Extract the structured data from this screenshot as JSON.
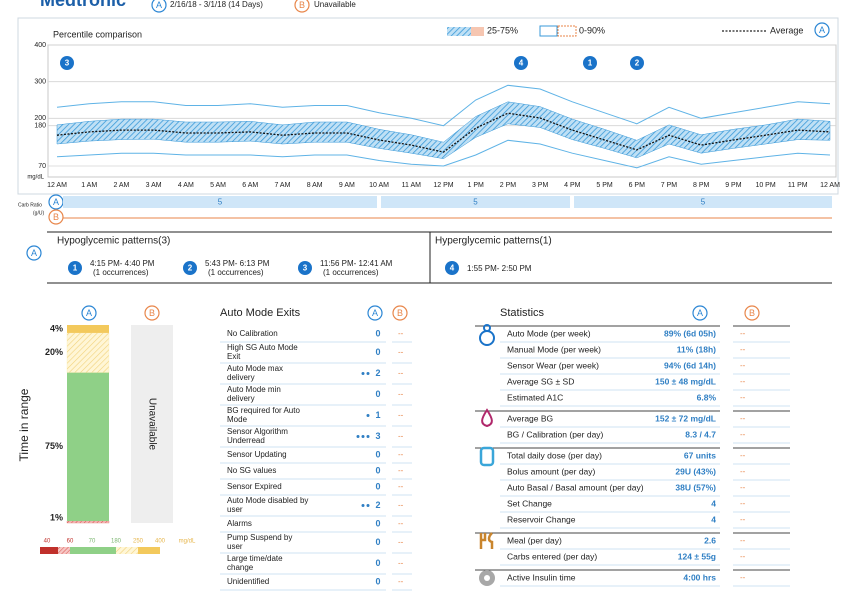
{
  "header": {
    "logo": "Medtronic",
    "period_a_badge": "A",
    "period_a": "2/16/18 - 3/1/18 (14 Days)",
    "period_b_badge": "B",
    "period_b": "Unavailable"
  },
  "percentile_chart": {
    "title": "Percentile comparison",
    "legend_band": "25-75%",
    "legend_range": "0-90%",
    "legend_average": "Average",
    "legend_badge": "A",
    "y_unit": "mg/dL",
    "ylim": [
      40,
      400
    ],
    "yticks": [
      400,
      300,
      200,
      180,
      70
    ],
    "x_labels": [
      "12 AM",
      "1 AM",
      "2 AM",
      "3 AM",
      "4 AM",
      "5 AM",
      "6 AM",
      "7 AM",
      "8 AM",
      "9 AM",
      "10 AM",
      "11 AM",
      "12 PM",
      "1 PM",
      "2 PM",
      "3 PM",
      "4 PM",
      "5 PM",
      "6 PM",
      "7 PM",
      "8 PM",
      "9 PM",
      "10 PM",
      "11 PM",
      "12 AM"
    ],
    "average": [
      154,
      163,
      168,
      168,
      160,
      160,
      163,
      154,
      160,
      160,
      141,
      127,
      108,
      173,
      214,
      201,
      168,
      141,
      114,
      154,
      127,
      141,
      154,
      168,
      163
    ],
    "p25": [
      130,
      138,
      142,
      143,
      135,
      135,
      138,
      130,
      135,
      135,
      118,
      105,
      90,
      148,
      185,
      175,
      142,
      118,
      92,
      130,
      105,
      118,
      130,
      142,
      140
    ],
    "p75": [
      182,
      192,
      198,
      198,
      190,
      190,
      192,
      182,
      190,
      190,
      170,
      155,
      135,
      205,
      245,
      232,
      198,
      170,
      140,
      182,
      155,
      170,
      182,
      198,
      192
    ],
    "p10": [
      95,
      100,
      105,
      105,
      100,
      100,
      100,
      95,
      100,
      100,
      85,
      75,
      70,
      100,
      140,
      130,
      105,
      85,
      65,
      95,
      75,
      85,
      95,
      105,
      100
    ],
    "p90": [
      230,
      240,
      245,
      245,
      235,
      235,
      240,
      230,
      235,
      235,
      215,
      200,
      180,
      250,
      290,
      280,
      245,
      215,
      185,
      230,
      200,
      215,
      230,
      245,
      240
    ],
    "markers": [
      "3",
      "4",
      "1",
      "2"
    ]
  },
  "carb_ratio": {
    "label_lines": [
      "Carb Ratio",
      "(g/U)"
    ],
    "badge_a": "A",
    "badge_b": "B",
    "segments": [
      5,
      5,
      5
    ]
  },
  "patterns": {
    "badge": "A",
    "hypo_title": "Hypoglycemic patterns(3)",
    "hyper_title": "Hyperglycemic patterns(1)",
    "items": [
      {
        "num": "1",
        "time": "4:15 PM- 4:40 PM",
        "occ": "(1 occurrences)"
      },
      {
        "num": "2",
        "time": "5:43 PM- 6:13 PM",
        "occ": "(1 occurrences)"
      },
      {
        "num": "3",
        "time": "11:56 PM- 12:41 AM",
        "occ": "(1 occurrences)"
      },
      {
        "num": "4",
        "time": "1:55 PM- 2:50 PM"
      }
    ]
  },
  "time_in_range": {
    "axis_label": "Time in range",
    "badge_a": "A",
    "badge_b": "B",
    "unavailable": "Unavailable",
    "segments": [
      {
        "label": "4%",
        "value": 4,
        "color": "#f3c95c"
      },
      {
        "label": "20%",
        "value": 20,
        "color": "#fbeaa9"
      },
      {
        "label": "75%",
        "value": 75,
        "color": "#8fd087"
      },
      {
        "label": "1%",
        "value": 1,
        "color": "#d9534f"
      }
    ],
    "legend_ticks": [
      40,
      60,
      70,
      180,
      250,
      400
    ],
    "legend_unit": "mg/dL"
  },
  "auto_mode_exits": {
    "title": "Auto Mode Exits",
    "badge_a": "A",
    "badge_b": "B",
    "rows": [
      {
        "label": [
          "No Calibration"
        ],
        "value": 0,
        "b": "--"
      },
      {
        "label": [
          "High SG Auto Mode",
          "Exit"
        ],
        "value": 0,
        "b": "--"
      },
      {
        "label": [
          "Auto Mode max",
          "delivery"
        ],
        "value": 2,
        "b": "--"
      },
      {
        "label": [
          "Auto Mode min",
          "delivery"
        ],
        "value": 0,
        "b": "--"
      },
      {
        "label": [
          "BG required for Auto",
          "Mode"
        ],
        "value": 1,
        "b": "--"
      },
      {
        "label": [
          "Sensor Algorithm",
          "Underread"
        ],
        "value": 3,
        "b": "--"
      },
      {
        "label": [
          "Sensor Updating"
        ],
        "value": 0,
        "b": "--"
      },
      {
        "label": [
          "No SG values"
        ],
        "value": 0,
        "b": "--"
      },
      {
        "label": [
          "Sensor Expired"
        ],
        "value": 0,
        "b": "--"
      },
      {
        "label": [
          "Auto Mode disabled by",
          "user"
        ],
        "value": 2,
        "b": "--"
      },
      {
        "label": [
          "Alarms"
        ],
        "value": 0,
        "b": "--"
      },
      {
        "label": [
          "Pump Suspend by",
          "user"
        ],
        "value": 0,
        "b": "--"
      },
      {
        "label": [
          "Large time/date",
          "change"
        ],
        "value": 0,
        "b": "--"
      },
      {
        "label": [
          "Unidentified"
        ],
        "value": 0,
        "b": "--"
      }
    ]
  },
  "statistics": {
    "title": "Statistics",
    "badge_a": "A",
    "badge_b": "B",
    "groups": [
      [
        {
          "label": "Auto Mode (per week)",
          "value": "89% (6d 05h)",
          "b": "--"
        },
        {
          "label": "Manual Mode (per week)",
          "value": "11% (18h)",
          "b": "--"
        },
        {
          "label": "Sensor Wear (per week)",
          "value": "94% (6d 14h)",
          "b": "--"
        },
        {
          "label": "Average SG ± SD",
          "value": "150 ± 48 mg/dL",
          "b": "--"
        },
        {
          "label": "Estimated A1C",
          "value": "6.8%",
          "b": "--"
        }
      ],
      [
        {
          "label": "Average BG",
          "value": "152 ± 72 mg/dL",
          "b": "--"
        },
        {
          "label": "BG / Calibration (per day)",
          "value": "8.3 / 4.7",
          "b": "--"
        }
      ],
      [
        {
          "label": "Total daily dose (per day)",
          "value": "67 units",
          "b": "--"
        },
        {
          "label": "Bolus amount (per day)",
          "value": "29U (43%)",
          "b": "--"
        },
        {
          "label": "Auto Basal / Basal amount (per day)",
          "value": "38U (57%)",
          "b": "--"
        },
        {
          "label": "Set Change",
          "value": 4,
          "b": "--"
        },
        {
          "label": "Reservoir Change",
          "value": 4,
          "b": "--"
        }
      ],
      [
        {
          "label": "Meal (per day)",
          "value": 2.6,
          "b": "--"
        },
        {
          "label": "Carbs entered (per day)",
          "value": "124 ± 55g",
          "b": "--"
        }
      ],
      [
        {
          "label": "Active Insulin time",
          "value": "4:00 hrs",
          "b": "--"
        }
      ]
    ]
  }
}
